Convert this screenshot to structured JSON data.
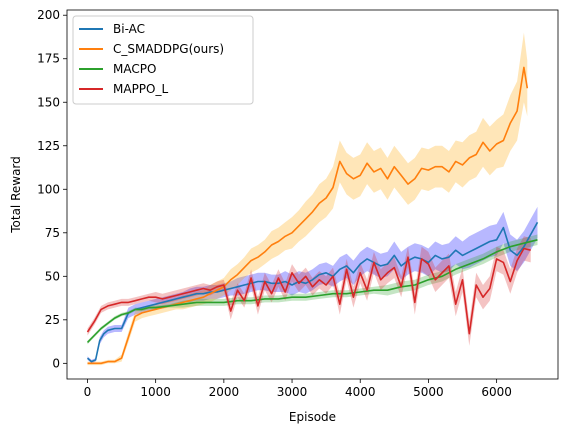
{
  "chart_data": {
    "type": "line",
    "title": "",
    "xlabel": "Episode",
    "ylabel": "Total Reward",
    "xlim": [
      -300,
      6900
    ],
    "ylim": [
      -9,
      203
    ],
    "xticks": [
      0,
      1000,
      2000,
      3000,
      4000,
      5000,
      6000
    ],
    "yticks": [
      0,
      25,
      50,
      75,
      100,
      125,
      150,
      175,
      200
    ],
    "grid": false,
    "legend_position": "top-left",
    "series": [
      {
        "name": "Bi-AC",
        "color": "#1f77b4",
        "band_color": "#0000ff",
        "x": [
          0,
          60,
          120,
          180,
          240,
          300,
          400,
          500,
          600,
          700,
          800,
          900,
          1000,
          1100,
          1200,
          1300,
          1400,
          1500,
          1600,
          1700,
          1800,
          1900,
          2000,
          2100,
          2200,
          2300,
          2400,
          2500,
          2600,
          2700,
          2800,
          2900,
          3000,
          3100,
          3200,
          3300,
          3400,
          3500,
          3600,
          3700,
          3800,
          3900,
          4000,
          4100,
          4200,
          4300,
          4400,
          4500,
          4600,
          4700,
          4800,
          4900,
          5000,
          5100,
          5200,
          5300,
          5400,
          5500,
          5600,
          5700,
          5800,
          5900,
          6000,
          6100,
          6200,
          6300,
          6400,
          6500,
          6600
        ],
        "y": [
          3,
          1,
          2,
          13,
          17,
          19,
          20,
          20,
          29,
          31,
          32,
          33,
          34,
          35,
          36,
          37,
          38,
          39,
          40,
          40,
          41,
          41,
          42,
          43,
          44,
          45,
          46,
          47,
          47,
          46,
          46,
          47,
          45,
          47,
          46,
          48,
          51,
          52,
          50,
          54,
          56,
          52,
          57,
          60,
          58,
          56,
          57,
          62,
          56,
          59,
          61,
          60,
          58,
          62,
          60,
          61,
          65,
          62,
          64,
          66,
          68,
          70,
          71,
          78,
          65,
          62,
          67,
          74,
          81
        ],
        "spread": [
          1,
          1,
          1,
          2,
          2,
          2,
          2,
          2,
          3,
          3,
          3,
          3,
          3,
          3,
          3,
          3,
          3,
          4,
          4,
          4,
          4,
          4,
          4,
          4,
          5,
          5,
          5,
          5,
          5,
          5,
          5,
          6,
          6,
          6,
          6,
          6,
          6,
          6,
          6,
          7,
          7,
          7,
          7,
          7,
          7,
          7,
          7,
          8,
          8,
          8,
          8,
          8,
          8,
          8,
          8,
          8,
          8,
          8,
          9,
          9,
          9,
          9,
          9,
          9,
          9,
          9,
          9,
          9,
          9
        ]
      },
      {
        "name": "C_SMADDPG(ours)",
        "color": "#ff7f0e",
        "band_color": "#ffa500",
        "x": [
          0,
          100,
          200,
          300,
          400,
          500,
          600,
          700,
          800,
          900,
          1000,
          1100,
          1200,
          1300,
          1400,
          1500,
          1600,
          1700,
          1800,
          1900,
          2000,
          2100,
          2200,
          2300,
          2400,
          2500,
          2600,
          2700,
          2800,
          2900,
          3000,
          3100,
          3200,
          3300,
          3400,
          3500,
          3600,
          3700,
          3800,
          3900,
          4000,
          4100,
          4200,
          4300,
          4400,
          4500,
          4600,
          4700,
          4800,
          4900,
          5000,
          5100,
          5200,
          5300,
          5400,
          5500,
          5600,
          5700,
          5800,
          5900,
          6000,
          6100,
          6200,
          6300,
          6400,
          6450
        ],
        "y": [
          0,
          0,
          0,
          1,
          1,
          3,
          15,
          27,
          29,
          30,
          31,
          32,
          33,
          34,
          35,
          36,
          37,
          38,
          40,
          42,
          44,
          48,
          51,
          55,
          59,
          61,
          64,
          68,
          70,
          73,
          75,
          79,
          83,
          87,
          92,
          95,
          101,
          116,
          109,
          106,
          108,
          115,
          110,
          112,
          106,
          113,
          108,
          103,
          106,
          112,
          111,
          113,
          113,
          110,
          116,
          114,
          118,
          120,
          127,
          122,
          126,
          128,
          138,
          145,
          170,
          158
        ],
        "spread": [
          1,
          1,
          1,
          1,
          1,
          2,
          3,
          3,
          3,
          3,
          3,
          3,
          3,
          3,
          4,
          4,
          4,
          4,
          5,
          5,
          5,
          6,
          6,
          6,
          7,
          7,
          7,
          8,
          8,
          8,
          9,
          9,
          10,
          10,
          11,
          11,
          12,
          12,
          12,
          12,
          12,
          12,
          12,
          12,
          12,
          12,
          12,
          12,
          12,
          12,
          12,
          12,
          12,
          12,
          12,
          13,
          13,
          13,
          14,
          14,
          14,
          15,
          16,
          17,
          20,
          16
        ]
      },
      {
        "name": "MACPO",
        "color": "#2ca02c",
        "band_color": "#2ca02c",
        "x": [
          0,
          100,
          200,
          300,
          400,
          500,
          600,
          700,
          800,
          900,
          1000,
          1200,
          1400,
          1600,
          1800,
          2000,
          2200,
          2400,
          2600,
          2800,
          3000,
          3200,
          3400,
          3600,
          3800,
          4000,
          4200,
          4400,
          4600,
          4800,
          5000,
          5200,
          5400,
          5600,
          5800,
          6000,
          6200,
          6400,
          6600
        ],
        "y": [
          12,
          16,
          20,
          23,
          26,
          28,
          29,
          31,
          31,
          32,
          32,
          33,
          34,
          35,
          35,
          35,
          36,
          36,
          37,
          37,
          38,
          38,
          39,
          40,
          40,
          41,
          42,
          42,
          44,
          45,
          48,
          50,
          54,
          57,
          60,
          64,
          67,
          69,
          71
        ],
        "spread": [
          1,
          1,
          1,
          1,
          1,
          1,
          1,
          1,
          1,
          1,
          1,
          1,
          2,
          2,
          2,
          2,
          2,
          2,
          2,
          2,
          2,
          2,
          2,
          2,
          2,
          2,
          2,
          3,
          3,
          3,
          3,
          3,
          3,
          3,
          3,
          3,
          3,
          3,
          3
        ]
      },
      {
        "name": "MAPPO_L",
        "color": "#d62728",
        "band_color": "#d62728",
        "x": [
          0,
          100,
          200,
          300,
          400,
          500,
          600,
          700,
          800,
          900,
          1000,
          1100,
          1200,
          1300,
          1400,
          1500,
          1600,
          1700,
          1800,
          1900,
          2000,
          2100,
          2200,
          2300,
          2400,
          2500,
          2600,
          2700,
          2800,
          2900,
          3000,
          3100,
          3200,
          3300,
          3400,
          3500,
          3600,
          3700,
          3800,
          3900,
          4000,
          4100,
          4200,
          4300,
          4400,
          4500,
          4600,
          4700,
          4800,
          4900,
          5000,
          5100,
          5200,
          5300,
          5400,
          5500,
          5600,
          5700,
          5800,
          5900,
          6000,
          6100,
          6200,
          6300,
          6400,
          6500
        ],
        "y": [
          18,
          24,
          31,
          33,
          34,
          35,
          35,
          36,
          37,
          38,
          38,
          37,
          38,
          39,
          40,
          41,
          42,
          43,
          42,
          44,
          45,
          30,
          42,
          36,
          49,
          33,
          47,
          40,
          49,
          41,
          52,
          46,
          50,
          44,
          48,
          45,
          50,
          34,
          54,
          38,
          52,
          42,
          58,
          48,
          52,
          55,
          44,
          61,
          35,
          60,
          57,
          48,
          52,
          56,
          34,
          48,
          17,
          45,
          38,
          43,
          60,
          58,
          47,
          59,
          66,
          65
        ],
        "spread": [
          2,
          2,
          2,
          2,
          2,
          2,
          2,
          2,
          2,
          2,
          3,
          3,
          3,
          3,
          3,
          3,
          3,
          3,
          3,
          3,
          3,
          5,
          4,
          4,
          5,
          5,
          5,
          5,
          5,
          5,
          5,
          5,
          5,
          5,
          5,
          5,
          5,
          6,
          6,
          6,
          6,
          6,
          6,
          6,
          6,
          6,
          6,
          6,
          7,
          7,
          7,
          7,
          7,
          7,
          7,
          7,
          7,
          7,
          7,
          7,
          7,
          7,
          7,
          7,
          7,
          7
        ]
      }
    ]
  }
}
